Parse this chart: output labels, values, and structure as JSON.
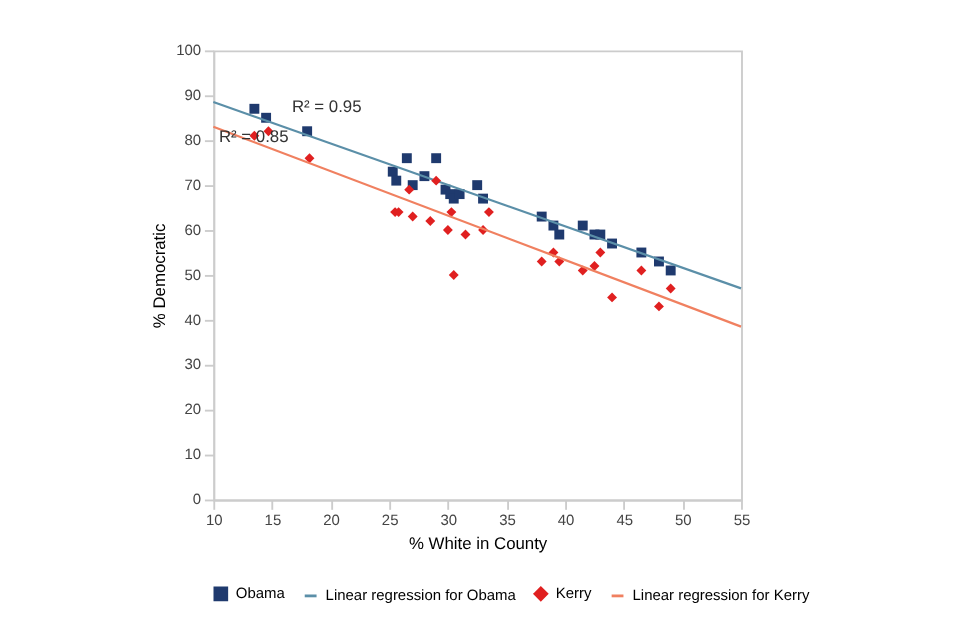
{
  "chart_data": {
    "type": "scatter",
    "xlabel": "% White in County",
    "ylabel": "% Democratic",
    "xlim": [
      10,
      55
    ],
    "xticks": [
      10,
      15,
      20,
      25,
      30,
      35,
      40,
      45,
      50,
      55
    ],
    "ylim": [
      0,
      100
    ],
    "yticks": [
      0,
      10,
      20,
      30,
      40,
      50,
      60,
      70,
      80,
      90,
      100
    ],
    "grid": false,
    "legend": "bottom",
    "series": [
      {
        "name": "Obama",
        "marker": "square",
        "color": "#1f3a6e",
        "x": [
          13.5,
          14.5,
          18,
          25.3,
          25.6,
          26.5,
          27,
          28,
          29,
          29.8,
          30.2,
          30.5,
          31,
          32.5,
          33,
          38,
          39,
          39.5,
          41.5,
          42.5,
          43,
          44,
          46.5,
          48,
          49
        ],
        "values": [
          87,
          85,
          82,
          73,
          71,
          76,
          70,
          72,
          76,
          69,
          68,
          67,
          68,
          70,
          67,
          63,
          61,
          59,
          61,
          59,
          59,
          57,
          55,
          53,
          51
        ]
      },
      {
        "name": "Linear regression for Obama",
        "type": "line",
        "marker": "none",
        "color": "#5b8fa8",
        "x": [
          10,
          55
        ],
        "values": [
          88.5,
          47
        ]
      },
      {
        "name": "Kerry",
        "marker": "diamond",
        "color": "#e02020",
        "x": [
          13.5,
          14.7,
          18.2,
          25.5,
          25.8,
          26.7,
          27,
          28.5,
          29,
          30,
          30.3,
          30.5,
          31.5,
          33,
          33.5,
          38,
          39,
          39.5,
          41.5,
          42.5,
          43,
          44,
          46.5,
          48,
          49
        ],
        "values": [
          81,
          82,
          76,
          64,
          64,
          69,
          63,
          62,
          71,
          60,
          64,
          50,
          59,
          60,
          64,
          53,
          55,
          53,
          51,
          52,
          55,
          45,
          51,
          43,
          47
        ]
      },
      {
        "name": "Linear regression for Kerry",
        "type": "line",
        "marker": "none",
        "color": "#f08060",
        "x": [
          10,
          55
        ],
        "values": [
          83,
          38.5
        ]
      }
    ],
    "annotations": [
      "R² = 0.95",
      "R² = 0.85"
    ]
  }
}
